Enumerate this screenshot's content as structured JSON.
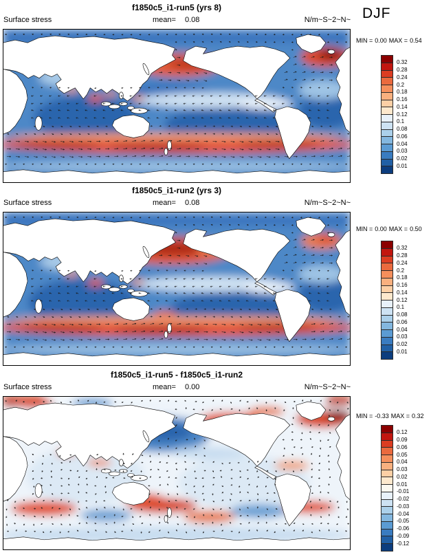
{
  "page": {
    "season": "DJF",
    "background": "#ffffff"
  },
  "panels": [
    {
      "title": "f1850c5_i1-run5 (yrs 8)",
      "field_label": "Surface stress",
      "mean_label": "mean=",
      "mean_value": "0.08",
      "units": "N/m~S~2~N~",
      "min_label": "MIN =",
      "min_value": "0.00",
      "max_label": "MAX =",
      "max_value": "0.54",
      "colorbar": {
        "labels": [
          "0.32",
          "0.28",
          "0.24",
          "0.2",
          "0.18",
          "0.16",
          "0.14",
          "0.12",
          "0.1",
          "0.08",
          "0.06",
          "0.04",
          "0.03",
          "0.02",
          "0.01"
        ],
        "colors": [
          "#8b0000",
          "#c2160f",
          "#dc3d22",
          "#ea6a3e",
          "#f58f5c",
          "#f9b07f",
          "#fccfa5",
          "#fde8cd",
          "#e8f1fa",
          "#cde2f3",
          "#abd0ea",
          "#83b7df",
          "#5b9bd3",
          "#3a7cc0",
          "#2160a5",
          "#0c3d7e"
        ]
      }
    },
    {
      "title": "f1850c5_i1-run2 (yrs 3)",
      "field_label": "Surface stress",
      "mean_label": "mean=",
      "mean_value": "0.08",
      "units": "N/m~S~2~N~",
      "min_label": "MIN =",
      "min_value": "0.00",
      "max_label": "MAX =",
      "max_value": "0.50",
      "colorbar": {
        "labels": [
          "0.32",
          "0.28",
          "0.24",
          "0.2",
          "0.18",
          "0.16",
          "0.14",
          "0.12",
          "0.1",
          "0.08",
          "0.06",
          "0.04",
          "0.03",
          "0.02",
          "0.01"
        ],
        "colors": [
          "#8b0000",
          "#c2160f",
          "#dc3d22",
          "#ea6a3e",
          "#f58f5c",
          "#f9b07f",
          "#fccfa5",
          "#fde8cd",
          "#e8f1fa",
          "#cde2f3",
          "#abd0ea",
          "#83b7df",
          "#5b9bd3",
          "#3a7cc0",
          "#2160a5",
          "#0c3d7e"
        ]
      }
    },
    {
      "title": "f1850c5_i1-run5 - f1850c5_i1-run2",
      "field_label": "Surface stress",
      "mean_label": "mean=",
      "mean_value": "0.00",
      "units": "N/m~S~2~N~",
      "min_label": "MIN =",
      "min_value": "-0.33",
      "max_label": "MAX =",
      "max_value": "0.32",
      "colorbar": {
        "labels": [
          "0.12",
          "0.09",
          "0.06",
          "0.05",
          "0.04",
          "0.03",
          "0.02",
          "0.01",
          "-0.01",
          "-0.02",
          "-0.03",
          "-0.04",
          "-0.05",
          "-0.06",
          "-0.09",
          "-0.12"
        ],
        "colors": [
          "#8b0000",
          "#c2160f",
          "#dc3d22",
          "#ea6a3e",
          "#f58f5c",
          "#f9b07f",
          "#fccfa5",
          "#fde8cd",
          "#fbf8f0",
          "#e8f1fa",
          "#cde2f3",
          "#abd0ea",
          "#83b7df",
          "#5b9bd3",
          "#3a7cc0",
          "#2160a5",
          "#0c3d7e"
        ]
      }
    }
  ],
  "chart_data": [
    {
      "type": "heatmap",
      "panel": 1,
      "title": "f1850c5_i1-run5 (yrs 8)",
      "variable": "Surface stress",
      "season": "DJF",
      "units": "N/m~S~2~N~",
      "mean": 0.08,
      "min": 0.0,
      "max": 0.54,
      "contour_levels": [
        0.01,
        0.02,
        0.03,
        0.04,
        0.06,
        0.08,
        0.1,
        0.12,
        0.14,
        0.16,
        0.18,
        0.2,
        0.24,
        0.28,
        0.32
      ],
      "colormap": "blue-white-red, blue low stress, red high stress",
      "projection": "global cylindrical lat-lon, Pacific-centered",
      "overlay": "surface wind stress vectors",
      "legend_position": "right"
    },
    {
      "type": "heatmap",
      "panel": 2,
      "title": "f1850c5_i1-run2 (yrs 3)",
      "variable": "Surface stress",
      "season": "DJF",
      "units": "N/m~S~2~N~",
      "mean": 0.08,
      "min": 0.0,
      "max": 0.5,
      "contour_levels": [
        0.01,
        0.02,
        0.03,
        0.04,
        0.06,
        0.08,
        0.1,
        0.12,
        0.14,
        0.16,
        0.18,
        0.2,
        0.24,
        0.28,
        0.32
      ],
      "colormap": "blue-white-red, blue low stress, red high stress",
      "projection": "global cylindrical lat-lon, Pacific-centered",
      "overlay": "surface wind stress vectors",
      "legend_position": "right"
    },
    {
      "type": "heatmap",
      "panel": 3,
      "title": "f1850c5_i1-run5 - f1850c5_i1-run2",
      "variable": "Surface stress difference",
      "season": "DJF",
      "units": "N/m~S~2~N~",
      "mean": 0.0,
      "min": -0.33,
      "max": 0.32,
      "contour_levels": [
        -0.12,
        -0.09,
        -0.06,
        -0.05,
        -0.04,
        -0.03,
        -0.02,
        -0.01,
        0.01,
        0.02,
        0.03,
        0.04,
        0.05,
        0.06,
        0.09,
        0.12
      ],
      "colormap": "blue-white-red diverging, centered at 0",
      "projection": "global cylindrical lat-lon, Pacific-centered",
      "overlay": "surface wind stress difference vectors",
      "legend_position": "right"
    }
  ]
}
